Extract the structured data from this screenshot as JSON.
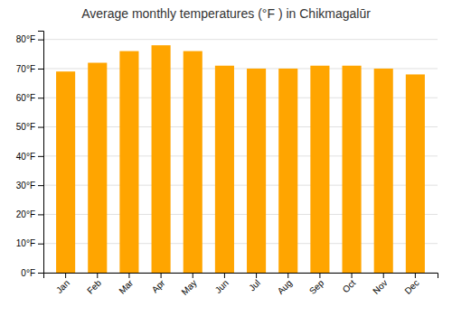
{
  "chart_data": {
    "type": "bar",
    "title": "Average monthly temperatures (°F ) in Chikmagalūr",
    "categories": [
      "Jan",
      "Feb",
      "Mar",
      "Apr",
      "May",
      "Jun",
      "Jul",
      "Aug",
      "Sep",
      "Oct",
      "Nov",
      "Dec"
    ],
    "values": [
      69,
      72,
      76,
      78,
      76,
      71,
      70,
      70,
      71,
      71,
      70,
      68
    ],
    "color": "#FFA500",
    "ylim": [
      0,
      83
    ],
    "yticks": [
      {
        "value": 0,
        "label": "0°F"
      },
      {
        "value": 10,
        "label": "10°F"
      },
      {
        "value": 20,
        "label": "20°F"
      },
      {
        "value": 30,
        "label": "30°F"
      },
      {
        "value": 40,
        "label": "40°F"
      },
      {
        "value": 50,
        "label": "50°F"
      },
      {
        "value": 60,
        "label": "60°F"
      },
      {
        "value": 70,
        "label": "70°F"
      },
      {
        "value": 80,
        "label": "80°F"
      }
    ],
    "grid": true
  }
}
